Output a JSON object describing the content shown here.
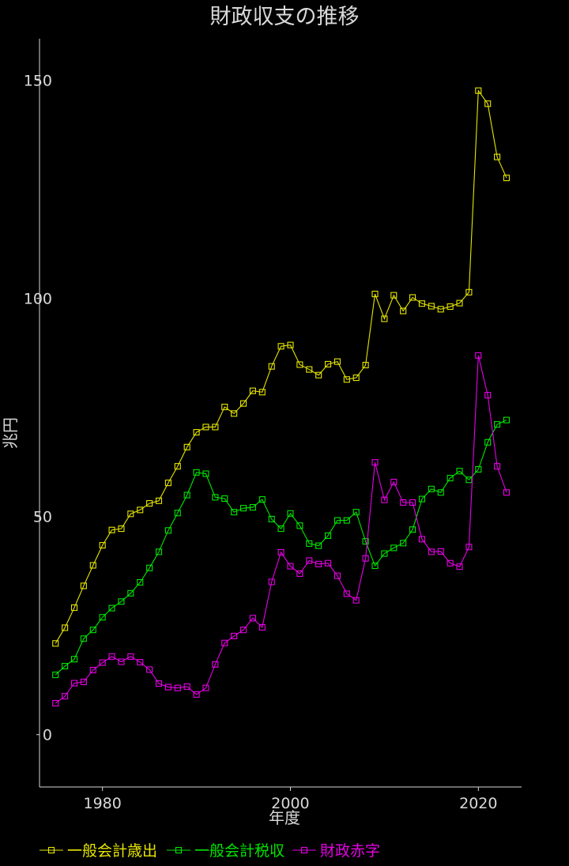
{
  "chart_data": {
    "type": "line",
    "title": "財政収支の推移",
    "xlabel": "年度",
    "ylabel": "兆円",
    "xlim": [
      1973.3,
      2024.6
    ],
    "ylim": [
      -12,
      159.5
    ],
    "x_ticks": [
      1980,
      2000,
      2020
    ],
    "y_ticks": [
      0,
      50,
      100,
      150
    ],
    "grid": false,
    "legend_position": "bottom-left",
    "x": [
      1975,
      1976,
      1977,
      1978,
      1979,
      1980,
      1981,
      1982,
      1983,
      1984,
      1985,
      1986,
      1987,
      1988,
      1989,
      1990,
      1991,
      1992,
      1993,
      1994,
      1995,
      1996,
      1997,
      1998,
      1999,
      2000,
      2001,
      2002,
      2003,
      2004,
      2005,
      2006,
      2007,
      2008,
      2009,
      2010,
      2011,
      2012,
      2013,
      2014,
      2015,
      2016,
      2017,
      2018,
      2019,
      2020,
      2021,
      2022,
      2023
    ],
    "series": [
      {
        "name": "一般会計歳出",
        "color": "#e6e600",
        "values": [
          20.9,
          24.5,
          29.1,
          34.1,
          38.8,
          43.4,
          46.9,
          47.2,
          50.6,
          51.5,
          53.0,
          53.6,
          57.7,
          61.5,
          65.9,
          69.3,
          70.5,
          70.5,
          75.1,
          73.6,
          75.9,
          78.8,
          78.5,
          84.4,
          89.0,
          89.3,
          84.8,
          83.7,
          82.4,
          84.9,
          85.5,
          81.4,
          81.8,
          84.7,
          101.0,
          95.3,
          100.7,
          97.1,
          100.2,
          98.8,
          98.2,
          97.5,
          98.1,
          98.9,
          101.4,
          147.6,
          144.6,
          132.4,
          127.6
        ]
      },
      {
        "name": "一般会計税収",
        "color": "#00e600",
        "values": [
          13.7,
          15.7,
          17.3,
          22.0,
          24.0,
          26.9,
          29.0,
          30.5,
          32.4,
          34.9,
          38.2,
          41.9,
          46.8,
          50.8,
          54.9,
          60.1,
          59.8,
          54.4,
          54.1,
          51.0,
          51.9,
          52.1,
          53.9,
          49.4,
          47.2,
          50.7,
          47.9,
          43.8,
          43.3,
          45.6,
          49.1,
          49.1,
          51.0,
          44.3,
          38.7,
          41.5,
          42.8,
          43.9,
          47.0,
          54.0,
          56.3,
          55.5,
          58.8,
          60.4,
          58.4,
          60.8,
          67.0,
          71.1,
          72.1
        ]
      },
      {
        "name": "財政赤字",
        "color": "#e600e6",
        "values": [
          7.2,
          8.8,
          11.8,
          12.1,
          14.8,
          16.5,
          17.9,
          16.7,
          17.9,
          16.6,
          14.9,
          11.7,
          10.9,
          10.7,
          11.0,
          9.2,
          10.7,
          16.1,
          21.0,
          22.6,
          24.0,
          26.7,
          24.6,
          35.0,
          41.8,
          38.6,
          36.9,
          39.9,
          39.1,
          39.3,
          36.4,
          32.3,
          30.8,
          40.4,
          62.4,
          53.8,
          57.9,
          53.2,
          53.2,
          44.8,
          41.9,
          42.0,
          39.3,
          38.5,
          43.0,
          86.9,
          77.8,
          61.5,
          55.5
        ]
      }
    ]
  }
}
